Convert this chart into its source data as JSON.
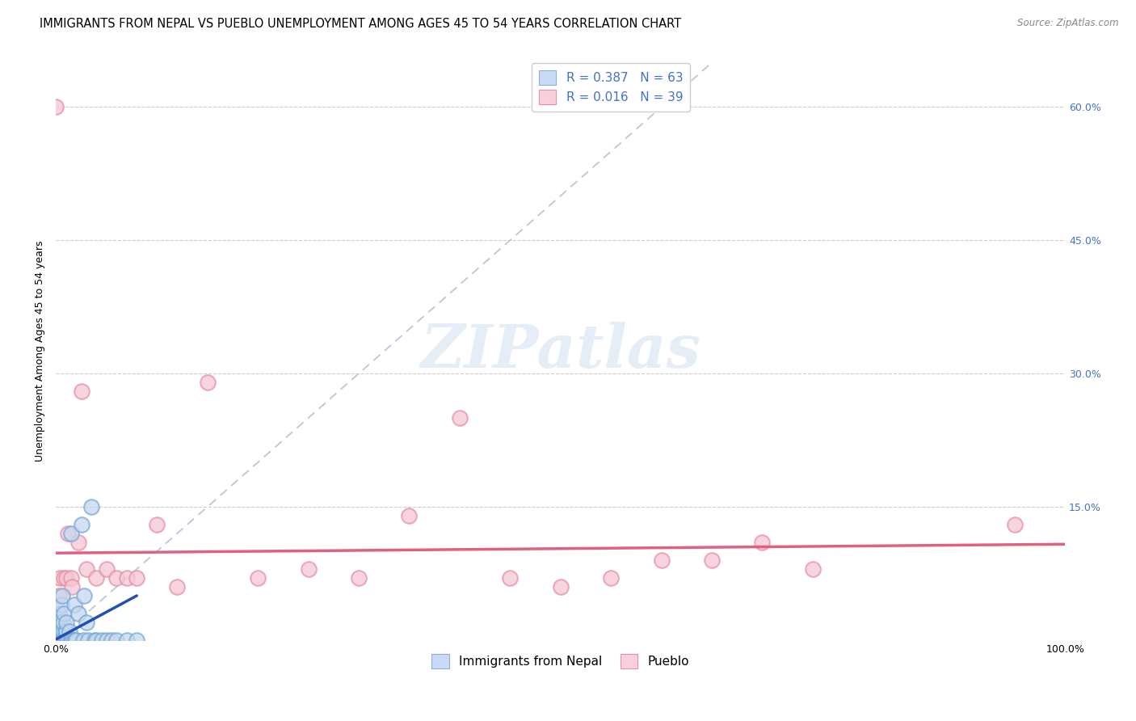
{
  "title": "IMMIGRANTS FROM NEPAL VS PUEBLO UNEMPLOYMENT AMONG AGES 45 TO 54 YEARS CORRELATION CHART",
  "source": "Source: ZipAtlas.com",
  "ylabel": "Unemployment Among Ages 45 to 54 years",
  "xlim": [
    0,
    1.0
  ],
  "ylim": [
    0,
    0.65
  ],
  "legend1_label": "Immigrants from Nepal",
  "legend1_facecolor": "#c8daf5",
  "legend1_edgecolor": "#8ab0e0",
  "legend2_label": "Pueblo",
  "legend2_facecolor": "#f8d0dc",
  "legend2_edgecolor": "#e890a8",
  "legend1_R": "R = 0.387",
  "legend1_N": "N = 63",
  "legend2_R": "R = 0.016",
  "legend2_N": "N = 39",
  "blue_line_color": "#2050b0",
  "pink_line_color": "#e06080",
  "diag_line_color": "#b8c8d8",
  "watermark": "ZIPatlas",
  "right_ytick_color": "#4472c4",
  "legend_text_color": "#4472c4",
  "nepal_scatter_face": "#c5d8f0",
  "nepal_scatter_edge": "#7aaad8",
  "pueblo_scatter_face": "#f5c8d5",
  "pueblo_scatter_edge": "#e890a8",
  "nepal_x": [
    0.0,
    0.0,
    0.0,
    0.001,
    0.001,
    0.001,
    0.001,
    0.001,
    0.002,
    0.002,
    0.002,
    0.002,
    0.002,
    0.003,
    0.003,
    0.003,
    0.003,
    0.004,
    0.004,
    0.004,
    0.005,
    0.005,
    0.005,
    0.005,
    0.006,
    0.006,
    0.006,
    0.007,
    0.007,
    0.007,
    0.008,
    0.008,
    0.009,
    0.009,
    0.01,
    0.01,
    0.01,
    0.011,
    0.012,
    0.013,
    0.014,
    0.015,
    0.015,
    0.016,
    0.017,
    0.018,
    0.019,
    0.02,
    0.022,
    0.025,
    0.027,
    0.028,
    0.03,
    0.032,
    0.035,
    0.038,
    0.04,
    0.045,
    0.05,
    0.055,
    0.06,
    0.07,
    0.08
  ],
  "nepal_y": [
    0.0,
    0.0,
    0.01,
    0.0,
    0.0,
    0.0,
    0.01,
    0.02,
    0.0,
    0.0,
    0.0,
    0.01,
    0.02,
    0.0,
    0.0,
    0.01,
    0.03,
    0.0,
    0.0,
    0.02,
    0.0,
    0.0,
    0.01,
    0.04,
    0.0,
    0.0,
    0.05,
    0.0,
    0.01,
    0.02,
    0.0,
    0.03,
    0.0,
    0.01,
    0.0,
    0.01,
    0.02,
    0.0,
    0.0,
    0.01,
    0.0,
    0.0,
    0.12,
    0.0,
    0.0,
    0.04,
    0.0,
    0.0,
    0.03,
    0.13,
    0.0,
    0.05,
    0.02,
    0.0,
    0.15,
    0.0,
    0.0,
    0.0,
    0.0,
    0.0,
    0.0,
    0.0,
    0.0
  ],
  "pueblo_x": [
    0.0,
    0.0,
    0.0,
    0.003,
    0.004,
    0.005,
    0.006,
    0.007,
    0.008,
    0.009,
    0.01,
    0.012,
    0.015,
    0.016,
    0.02,
    0.022,
    0.025,
    0.03,
    0.04,
    0.05,
    0.06,
    0.07,
    0.08,
    0.1,
    0.12,
    0.15,
    0.2,
    0.25,
    0.3,
    0.35,
    0.4,
    0.45,
    0.5,
    0.55,
    0.6,
    0.65,
    0.7,
    0.75,
    0.95
  ],
  "pueblo_y": [
    0.6,
    0.0,
    0.0,
    0.05,
    0.07,
    0.0,
    0.0,
    0.0,
    0.07,
    0.0,
    0.07,
    0.12,
    0.07,
    0.06,
    0.0,
    0.11,
    0.28,
    0.08,
    0.07,
    0.08,
    0.07,
    0.07,
    0.07,
    0.13,
    0.06,
    0.29,
    0.07,
    0.08,
    0.07,
    0.14,
    0.25,
    0.07,
    0.06,
    0.07,
    0.09,
    0.09,
    0.11,
    0.08,
    0.13
  ],
  "blue_trend_x": [
    0.0,
    0.08
  ],
  "blue_trend_y": [
    0.001,
    0.05
  ],
  "pink_trend_x": [
    0.0,
    1.0
  ],
  "pink_trend_y": [
    0.098,
    0.108
  ],
  "title_fontsize": 10.5,
  "axis_label_fontsize": 9,
  "tick_fontsize": 9,
  "source_fontsize": 8.5
}
